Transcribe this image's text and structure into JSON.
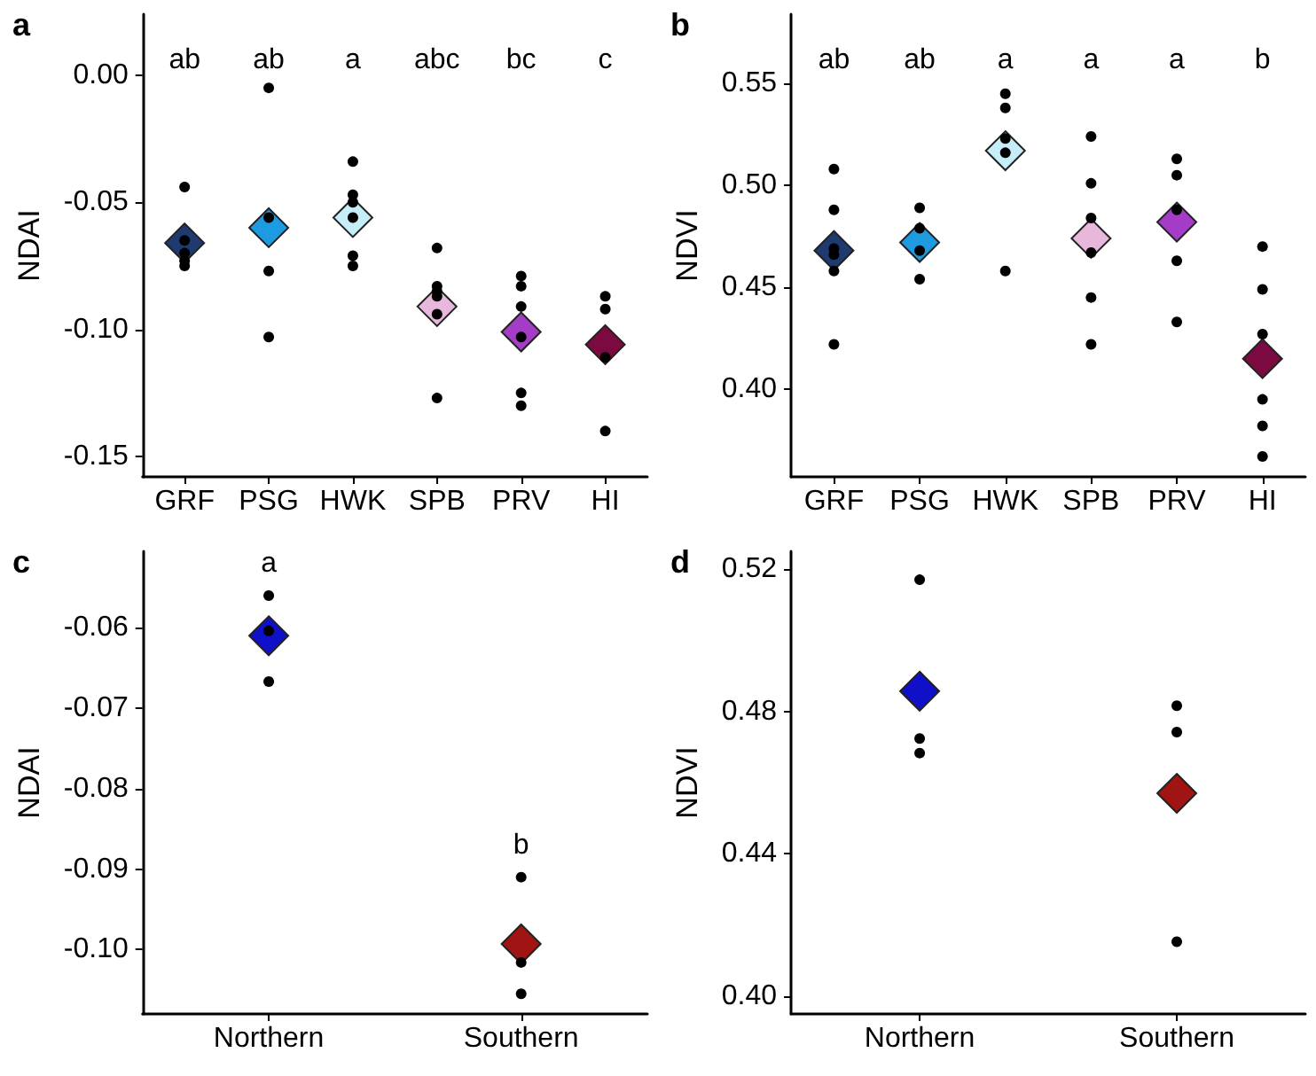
{
  "chart_data": [
    {
      "type": "scatter",
      "title": "a",
      "ylabel": "NDAI",
      "categories": [
        "GRF",
        "PSG",
        "HWK",
        "SPB",
        "PRV",
        "HI"
      ],
      "ylim": [
        -0.158,
        0.024
      ],
      "yticks": [
        {
          "value": -0.15,
          "label": "-0.15"
        },
        {
          "value": -0.1,
          "label": "-0.10"
        },
        {
          "value": -0.05,
          "label": "-0.05"
        },
        {
          "value": 0,
          "label": "0.00"
        }
      ],
      "grid": false,
      "annotations": [
        "ab",
        "ab",
        "a",
        "abc",
        "bc",
        "c"
      ],
      "series": [
        {
          "marker": "diamond",
          "colors": [
            "#1f3a6e",
            "#1e9be0",
            "#c5eef8",
            "#e8b8dc",
            "#a43cc8",
            "#7a0a40"
          ],
          "values": [
            -0.066,
            -0.06,
            -0.056,
            -0.091,
            -0.101,
            -0.106
          ]
        },
        {
          "marker": "circle",
          "color": "#000000",
          "x": [
            "GRF",
            "GRF",
            "GRF",
            "GRF",
            "GRF",
            "PSG",
            "PSG",
            "PSG",
            "PSG",
            "HWK",
            "HWK",
            "HWK",
            "HWK",
            "HWK",
            "HWK",
            "SPB",
            "SPB",
            "SPB",
            "SPB",
            "SPB",
            "SPB",
            "PRV",
            "PRV",
            "PRV",
            "PRV",
            "PRV",
            "PRV",
            "HI",
            "HI",
            "HI",
            "HI"
          ],
          "values": [
            -0.044,
            -0.065,
            -0.07,
            -0.073,
            -0.075,
            -0.005,
            -0.056,
            -0.077,
            -0.103,
            -0.034,
            -0.047,
            -0.05,
            -0.056,
            -0.071,
            -0.075,
            -0.068,
            -0.083,
            -0.085,
            -0.087,
            -0.094,
            -0.127,
            -0.079,
            -0.083,
            -0.091,
            -0.103,
            -0.125,
            -0.13,
            -0.087,
            -0.092,
            -0.111,
            -0.14
          ]
        }
      ]
    },
    {
      "type": "scatter",
      "title": "b",
      "ylabel": "NDVI",
      "categories": [
        "GRF",
        "PSG",
        "HWK",
        "SPB",
        "PRV",
        "HI"
      ],
      "ylim": [
        0.357,
        0.584
      ],
      "yticks": [
        {
          "value": 0.4,
          "label": "0.40"
        },
        {
          "value": 0.45,
          "label": "0.45"
        },
        {
          "value": 0.5,
          "label": "0.50"
        },
        {
          "value": 0.55,
          "label": "0.55"
        }
      ],
      "grid": false,
      "annotations": [
        "ab",
        "ab",
        "a",
        "a",
        "a",
        "b"
      ],
      "series": [
        {
          "marker": "diamond",
          "colors": [
            "#1f3a6e",
            "#1e9be0",
            "#c5eef8",
            "#e8b8dc",
            "#a43cc8",
            "#7a0a40"
          ],
          "values": [
            0.468,
            0.472,
            0.517,
            0.474,
            0.482,
            0.415
          ]
        },
        {
          "marker": "circle",
          "color": "#000000",
          "x": [
            "GRF",
            "GRF",
            "GRF",
            "GRF",
            "GRF",
            "GRF",
            "PSG",
            "PSG",
            "PSG",
            "PSG",
            "HWK",
            "HWK",
            "HWK",
            "HWK",
            "HWK",
            "SPB",
            "SPB",
            "SPB",
            "SPB",
            "SPB",
            "SPB",
            "PRV",
            "PRV",
            "PRV",
            "PRV",
            "PRV",
            "HI",
            "HI",
            "HI",
            "HI",
            "HI",
            "HI"
          ],
          "values": [
            0.508,
            0.488,
            0.469,
            0.466,
            0.458,
            0.422,
            0.489,
            0.479,
            0.468,
            0.454,
            0.545,
            0.538,
            0.523,
            0.516,
            0.458,
            0.524,
            0.501,
            0.484,
            0.467,
            0.445,
            0.422,
            0.513,
            0.505,
            0.488,
            0.463,
            0.433,
            0.47,
            0.449,
            0.427,
            0.395,
            0.382,
            0.367
          ]
        }
      ]
    },
    {
      "type": "scatter",
      "title": "c",
      "ylabel": "NDAI",
      "categories": [
        "Northern",
        "Southern"
      ],
      "ylim": [
        -0.108,
        -0.0505
      ],
      "yticks": [
        {
          "value": -0.1,
          "label": "-0.10"
        },
        {
          "value": -0.09,
          "label": "-0.09"
        },
        {
          "value": -0.08,
          "label": "-0.08"
        },
        {
          "value": -0.07,
          "label": "-0.07"
        },
        {
          "value": -0.06,
          "label": "-0.06"
        }
      ],
      "grid": false,
      "annotations": [
        "a",
        "b"
      ],
      "series": [
        {
          "marker": "diamond",
          "colors": [
            "#1010c8",
            "#a01414"
          ],
          "values": [
            -0.061,
            -0.0993
          ]
        },
        {
          "marker": "circle",
          "color": "#000000",
          "x": [
            "Northern",
            "Northern",
            "Northern",
            "Southern",
            "Southern",
            "Southern"
          ],
          "values": [
            -0.056,
            -0.0604,
            -0.0667,
            -0.091,
            -0.1016,
            -0.1055
          ]
        }
      ]
    },
    {
      "type": "scatter",
      "title": "d",
      "ylabel": "NDVI",
      "categories": [
        "Northern",
        "Southern"
      ],
      "ylim": [
        0.395,
        0.525
      ],
      "yticks": [
        {
          "value": 0.4,
          "label": "0.40"
        },
        {
          "value": 0.44,
          "label": "0.44"
        },
        {
          "value": 0.48,
          "label": "0.48"
        },
        {
          "value": 0.52,
          "label": "0.52"
        }
      ],
      "grid": false,
      "series": [
        {
          "marker": "diamond",
          "colors": [
            "#1010c8",
            "#a01414"
          ],
          "values": [
            0.4857,
            0.457
          ]
        },
        {
          "marker": "circle",
          "color": "#000000",
          "x": [
            "Northern",
            "Northern",
            "Northern",
            "Southern",
            "Southern",
            "Southern"
          ],
          "values": [
            0.517,
            0.4724,
            0.4683,
            0.4816,
            0.4742,
            0.4153
          ]
        }
      ]
    }
  ]
}
